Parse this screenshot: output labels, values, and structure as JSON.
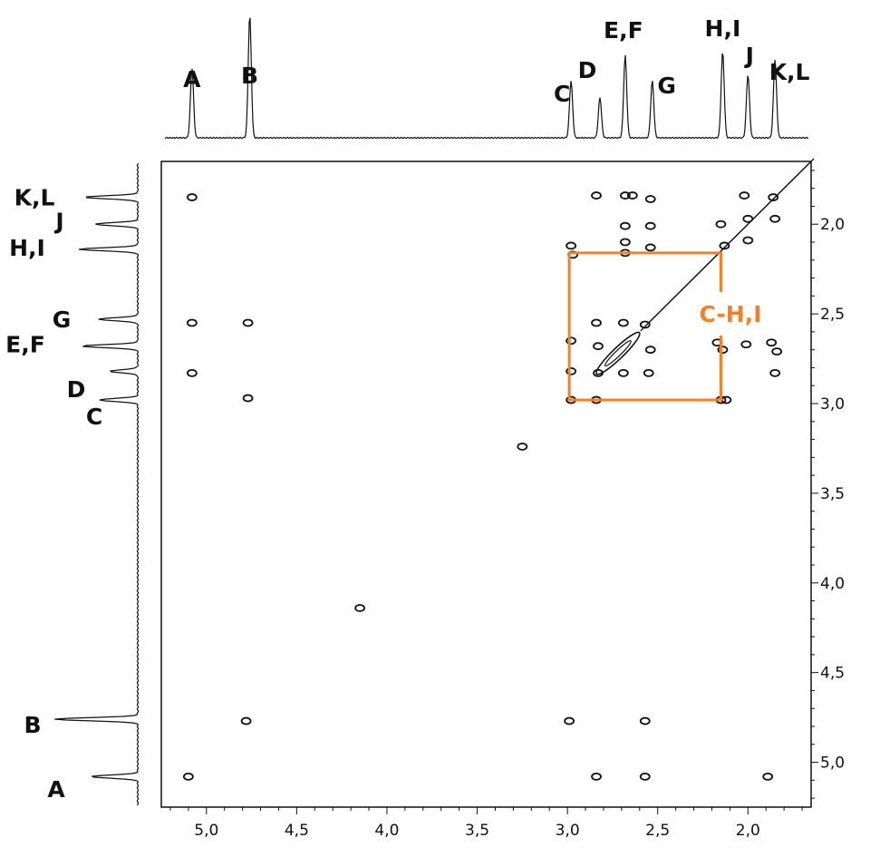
{
  "chart_data": {
    "type": "2D NMR COSY contour plot",
    "x_axis": {
      "range": [
        5.25,
        1.65
      ],
      "reversed": true,
      "ticks": [
        5.0,
        4.5,
        4.0,
        3.5,
        3.0,
        2.5,
        2.0
      ],
      "tick_labels": [
        "5,0",
        "4,5",
        "4,0",
        "3,5",
        "3,0",
        "2,5",
        "2,0"
      ]
    },
    "y_axis": {
      "range": [
        1.65,
        5.25
      ],
      "reversed": true,
      "ticks": [
        2.0,
        2.5,
        3.0,
        3.5,
        4.0,
        4.5,
        5.0
      ],
      "tick_labels": [
        "2,0",
        "2,5",
        "3,0",
        "3,5",
        "4,0",
        "4,5",
        "5,0"
      ]
    },
    "grid": false,
    "peaks": [
      {
        "label": "A",
        "shift": 5.08,
        "height": 0.55
      },
      {
        "label": "B",
        "shift": 4.76,
        "height": 0.97
      },
      {
        "label": "C",
        "shift": 2.98,
        "height": 0.45
      },
      {
        "label": "D",
        "shift": 2.82,
        "height": 0.32
      },
      {
        "label": "E,F",
        "shift": 2.68,
        "height": 0.65
      },
      {
        "label": "G",
        "shift": 2.53,
        "height": 0.45
      },
      {
        "label": "H,I",
        "shift": 2.14,
        "height": 0.68
      },
      {
        "label": "J",
        "shift": 2.0,
        "height": 0.5
      },
      {
        "label": "K,L",
        "shift": 1.85,
        "height": 0.62
      }
    ],
    "top_labels": [
      {
        "text": "A",
        "shift": 5.08
      },
      {
        "text": "B",
        "shift": 4.76
      },
      {
        "text": "C",
        "shift": 3.03
      },
      {
        "text": "D",
        "shift": 2.89
      },
      {
        "text": "E,F",
        "shift": 2.69
      },
      {
        "text": "G",
        "shift": 2.45
      },
      {
        "text": "H,I",
        "shift": 2.14
      },
      {
        "text": "J",
        "shift": 1.99
      },
      {
        "text": "K,L",
        "shift": 1.77
      }
    ],
    "left_labels": [
      {
        "text": "K,L",
        "shift": 1.85
      },
      {
        "text": "J",
        "shift": 1.98
      },
      {
        "text": "H,I",
        "shift": 2.13
      },
      {
        "text": "G",
        "shift": 2.53
      },
      {
        "text": "E,F",
        "shift": 2.67
      },
      {
        "text": "D",
        "shift": 2.92
      },
      {
        "text": "C",
        "shift": 3.07
      },
      {
        "text": "B",
        "shift": 4.79
      },
      {
        "text": "A",
        "shift": 5.15
      }
    ],
    "cross_peaks": [
      [
        5.08,
        1.85
      ],
      [
        5.08,
        2.55
      ],
      [
        5.08,
        2.83
      ],
      [
        5.1,
        5.08
      ],
      [
        4.77,
        2.55
      ],
      [
        4.77,
        2.97
      ],
      [
        4.78,
        4.77
      ],
      [
        2.99,
        4.77
      ],
      [
        2.57,
        4.77
      ],
      [
        2.84,
        5.08
      ],
      [
        2.57,
        5.08
      ],
      [
        1.89,
        5.08
      ],
      [
        2.84,
        1.84
      ],
      [
        2.68,
        1.84
      ],
      [
        2.64,
        1.84
      ],
      [
        2.54,
        1.86
      ],
      [
        2.68,
        2.01
      ],
      [
        2.54,
        2.01
      ],
      [
        2.68,
        2.1
      ],
      [
        2.54,
        2.13
      ],
      [
        2.98,
        2.12
      ],
      [
        2.97,
        2.17
      ],
      [
        2.68,
        2.16
      ],
      [
        2.84,
        2.55
      ],
      [
        2.69,
        2.55
      ],
      [
        2.57,
        2.56
      ],
      [
        2.98,
        2.65
      ],
      [
        2.83,
        2.68
      ],
      [
        2.54,
        2.7
      ],
      [
        2.98,
        2.82
      ],
      [
        2.83,
        2.83
      ],
      [
        2.69,
        2.83
      ],
      [
        2.55,
        2.83
      ],
      [
        2.98,
        2.98
      ],
      [
        2.84,
        2.98
      ],
      [
        2.17,
        2.66
      ],
      [
        2.14,
        2.7
      ],
      [
        2.01,
        2.67
      ],
      [
        1.87,
        2.66
      ],
      [
        1.84,
        2.71
      ],
      [
        2.15,
        2.98
      ],
      [
        2.12,
        2.98
      ],
      [
        1.85,
        2.83
      ],
      [
        2.02,
        1.84
      ],
      [
        2.0,
        1.97
      ],
      [
        1.86,
        1.85
      ],
      [
        1.85,
        1.97
      ],
      [
        2.15,
        2.0
      ],
      [
        2.13,
        2.12
      ],
      [
        2.0,
        2.09
      ],
      [
        3.25,
        3.24
      ],
      [
        4.15,
        4.14
      ]
    ],
    "diagonal_ellipse": {
      "center": [
        2.72,
        2.72
      ],
      "length": 0.22
    },
    "diagonal_line": {
      "from": [
        2.58,
        2.58
      ],
      "to": [
        1.65,
        1.65
      ]
    },
    "highlight_box": {
      "x_range": [
        2.99,
        2.15
      ],
      "y_range": [
        2.16,
        2.98
      ],
      "label": "C-H,I",
      "color": "#f58025"
    }
  }
}
